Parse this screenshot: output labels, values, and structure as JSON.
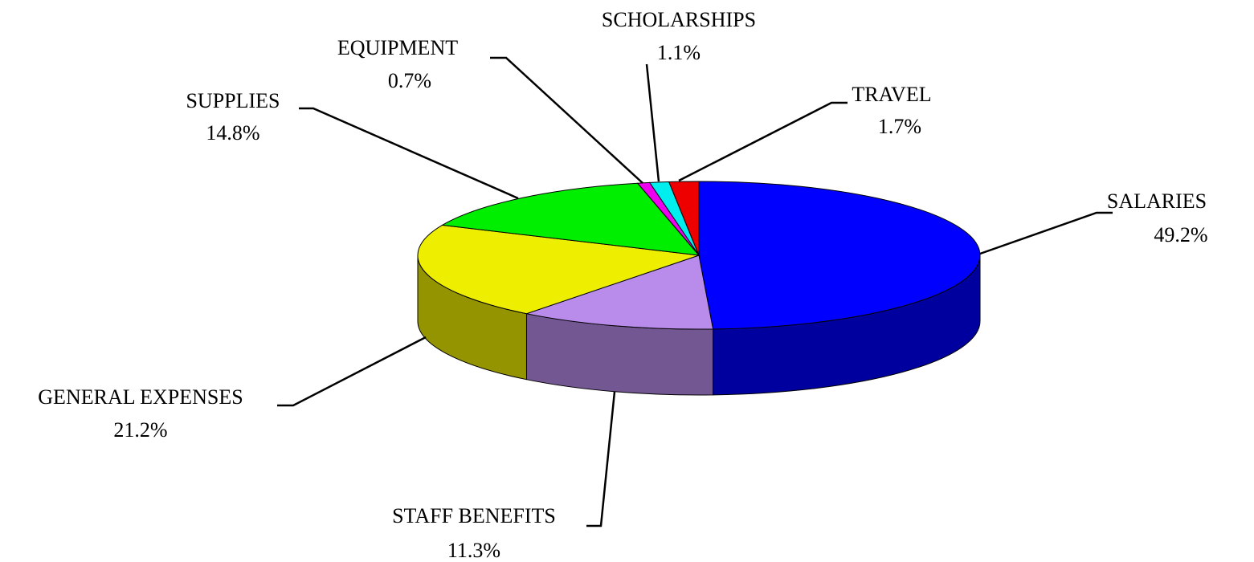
{
  "chart_data": {
    "type": "pie",
    "categories": [
      "SALARIES",
      "STAFF BENEFITS",
      "GENERAL EXPENSES",
      "SUPPLIES",
      "EQUIPMENT",
      "SCHOLARSHIPS",
      "TRAVEL"
    ],
    "values": [
      49.2,
      11.3,
      21.2,
      14.8,
      0.7,
      1.1,
      1.7
    ],
    "value_labels": [
      "49.2%",
      "11.3%",
      "21.2%",
      "14.8%",
      "0.7%",
      "1.1%",
      "1.7%"
    ],
    "colors": [
      "#0000ff",
      "#b98cec",
      "#eeee00",
      "#00ee00",
      "#ee00ee",
      "#00eeee",
      "#ee0000"
    ]
  }
}
